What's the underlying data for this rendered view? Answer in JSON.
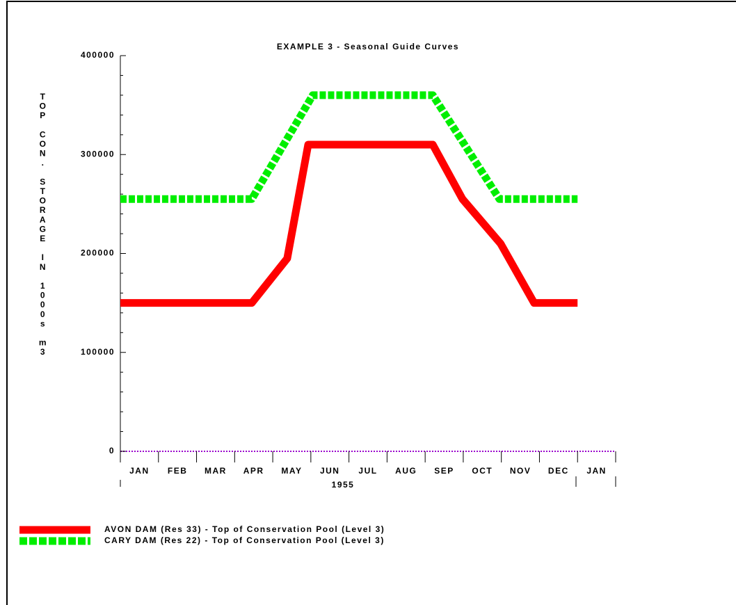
{
  "chart_data": {
    "type": "line",
    "title": "EXAMPLE 3 - Seasonal Guide Curves",
    "y_label": "TOP CON. STORAGE IN 1000s m3",
    "year_label": "1955",
    "categories": [
      "JAN",
      "FEB",
      "MAR",
      "APR",
      "MAY",
      "JUN",
      "JUL",
      "AUG",
      "SEP",
      "OCT",
      "NOV",
      "DEC",
      "JAN"
    ],
    "xlim": [
      0,
      13
    ],
    "ylim": [
      0,
      400000
    ],
    "yticks": [
      0,
      100000,
      200000,
      300000,
      400000
    ],
    "series": [
      {
        "name": "AVON DAM (Res 33) - Top of Conservation Pool (Level 3)",
        "color": "#ff0000",
        "style": "solid",
        "x": [
          0,
          3.45,
          4.38,
          4.93,
          8.2,
          8.98,
          9.98,
          10.86,
          12
        ],
        "values": [
          150000,
          150000,
          195000,
          310000,
          310000,
          255000,
          210000,
          150000,
          150000
        ]
      },
      {
        "name": "CARY DAM (Res 22) - Top of Conservation Pool (Level 3)",
        "color": "#00ee00",
        "style": "dashed",
        "x": [
          0,
          3.45,
          5.05,
          8.2,
          9.95,
          12
        ],
        "values": [
          255000,
          255000,
          360000,
          360000,
          255000,
          255000
        ]
      }
    ]
  }
}
